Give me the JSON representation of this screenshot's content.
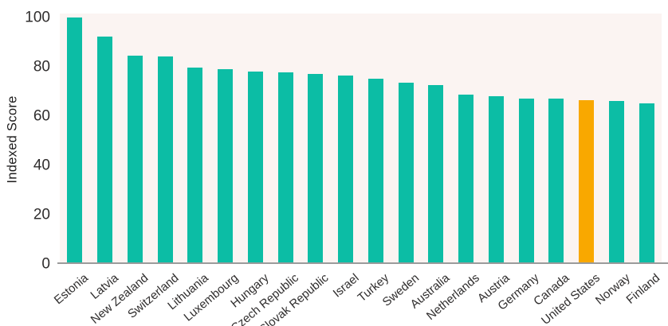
{
  "chart_data": {
    "type": "bar",
    "title": "",
    "xlabel": "",
    "ylabel": "Indexed Score",
    "categories": [
      "Estonia",
      "Latvia",
      "New Zealand",
      "Switzerland",
      "Lithuania",
      "Luxembourg",
      "Hungary",
      "Czech Republic",
      "Slovak Republic",
      "Israel",
      "Turkey",
      "Sweden",
      "Australia",
      "Netherlands",
      "Austria",
      "Germany",
      "Canada",
      "United States",
      "Norway",
      "Finland"
    ],
    "values": [
      100,
      92,
      84.5,
      84,
      79.5,
      79,
      78,
      77.5,
      77,
      76.5,
      75,
      73.5,
      72.5,
      68.5,
      68,
      67,
      67,
      66.5,
      66,
      65
    ],
    "highlight_category": "United States",
    "yticks": [
      0,
      20,
      40,
      60,
      80,
      100
    ],
    "ylim": [
      0,
      101.5
    ],
    "grid": false,
    "legend": false,
    "xlabel_rotation_deg": -40,
    "colors": {
      "bar": "#0CBDA5",
      "highlight": "#F9A800",
      "plot_background": "#FBF4F2",
      "axis_line": "#9B9B9B",
      "text": "#2F2D2D"
    }
  }
}
